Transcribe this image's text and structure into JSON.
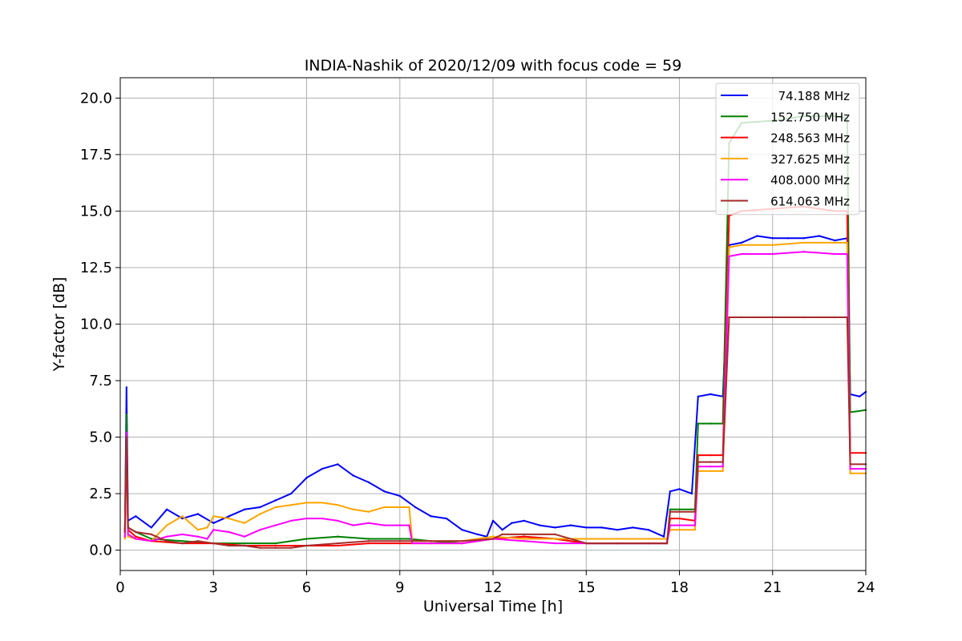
{
  "chart_data": {
    "type": "line",
    "title": "INDIA-Nashik of 2020/12/09 with focus code = 59",
    "xlabel": "Universal Time [h]",
    "ylabel": "Y-factor [dB]",
    "xlim": [
      0,
      24
    ],
    "ylim": [
      -0.9,
      20.9
    ],
    "xticks": [
      0,
      3,
      6,
      9,
      12,
      15,
      18,
      21,
      24
    ],
    "xtick_labels": [
      "0",
      "3",
      "6",
      "9",
      "12",
      "15",
      "18",
      "21",
      "24"
    ],
    "yticks": [
      0,
      2.5,
      5,
      7.5,
      10,
      12.5,
      15,
      17.5,
      20
    ],
    "ytick_labels": [
      "0.0",
      "2.5",
      "5.0",
      "7.5",
      "10.0",
      "12.5",
      "15.0",
      "17.5",
      "20.0"
    ],
    "grid": true,
    "legend_position": "top-right",
    "series": [
      {
        "name": "74.188 MHz",
        "color": "#0000ff",
        "x": [
          0.15,
          0.2,
          0.25,
          0.5,
          1.0,
          1.5,
          2.0,
          2.5,
          3.0,
          3.5,
          4.0,
          4.5,
          5.0,
          5.5,
          6.0,
          6.5,
          7.0,
          7.5,
          8.0,
          8.5,
          9.0,
          9.5,
          10.0,
          10.5,
          11.0,
          11.5,
          11.8,
          12.0,
          12.3,
          12.6,
          13.0,
          13.5,
          14.0,
          14.5,
          15.0,
          15.5,
          16.0,
          16.5,
          17.0,
          17.5,
          17.7,
          18.0,
          18.4,
          18.6,
          19.0,
          19.4,
          19.6,
          20.0,
          20.5,
          21.0,
          21.5,
          22.0,
          22.5,
          23.0,
          23.4,
          23.5,
          23.8,
          24.0
        ],
        "values": [
          0.8,
          7.2,
          1.3,
          1.5,
          1.0,
          1.8,
          1.4,
          1.6,
          1.2,
          1.5,
          1.8,
          1.9,
          2.2,
          2.5,
          3.2,
          3.6,
          3.8,
          3.3,
          3.0,
          2.6,
          2.4,
          1.9,
          1.5,
          1.4,
          0.9,
          0.7,
          0.6,
          1.3,
          0.9,
          1.2,
          1.3,
          1.1,
          1.0,
          1.1,
          1.0,
          1.0,
          0.9,
          1.0,
          0.9,
          0.6,
          2.6,
          2.7,
          2.5,
          6.8,
          6.9,
          6.8,
          13.5,
          13.6,
          13.9,
          13.8,
          13.8,
          13.8,
          13.9,
          13.7,
          13.8,
          6.9,
          6.8,
          7.0
        ]
      },
      {
        "name": "152.750 MHz",
        "color": "#008000",
        "x": [
          0.15,
          0.2,
          0.25,
          0.5,
          1.0,
          2.0,
          3.0,
          4.0,
          5.0,
          6.0,
          7.0,
          8.0,
          9.0,
          9.3,
          10.0,
          11.0,
          12.0,
          13.0,
          14.0,
          15.0,
          16.0,
          17.0,
          17.6,
          17.7,
          18.0,
          18.5,
          18.6,
          19.0,
          19.4,
          19.6,
          20.0,
          21.0,
          22.0,
          23.0,
          23.4,
          23.5,
          24.0
        ],
        "values": [
          0.9,
          6.0,
          1.0,
          0.8,
          0.5,
          0.4,
          0.3,
          0.3,
          0.3,
          0.5,
          0.6,
          0.5,
          0.5,
          0.5,
          0.4,
          0.3,
          0.5,
          0.6,
          0.5,
          0.3,
          0.3,
          0.3,
          0.3,
          1.8,
          1.8,
          1.8,
          5.6,
          5.6,
          5.6,
          18.0,
          18.9,
          19.0,
          19.2,
          19.2,
          19.1,
          6.1,
          6.2
        ]
      },
      {
        "name": "248.563 MHz",
        "color": "#ff0000",
        "x": [
          0.15,
          0.2,
          0.25,
          0.5,
          1.0,
          2.0,
          3.0,
          4.0,
          5.0,
          6.0,
          7.0,
          8.0,
          9.0,
          10.0,
          11.0,
          12.0,
          13.0,
          14.0,
          15.0,
          16.0,
          17.0,
          17.6,
          17.7,
          18.0,
          18.5,
          18.6,
          19.0,
          19.4,
          19.6,
          20.0,
          21.0,
          22.0,
          23.0,
          23.4,
          23.5,
          24.0
        ],
        "values": [
          0.8,
          5.0,
          0.9,
          0.6,
          0.4,
          0.3,
          0.3,
          0.2,
          0.2,
          0.2,
          0.2,
          0.3,
          0.3,
          0.3,
          0.3,
          0.5,
          0.6,
          0.5,
          0.3,
          0.3,
          0.3,
          0.3,
          1.4,
          1.4,
          1.3,
          4.2,
          4.2,
          4.2,
          14.8,
          15.0,
          15.1,
          15.2,
          15.0,
          15.0,
          4.3,
          4.3
        ]
      },
      {
        "name": "327.625 MHz",
        "color": "#ffa500",
        "x": [
          0.15,
          0.2,
          0.25,
          0.5,
          1.0,
          1.5,
          2.0,
          2.5,
          2.8,
          3.0,
          3.5,
          4.0,
          4.5,
          5.0,
          5.5,
          6.0,
          6.5,
          7.0,
          7.5,
          8.0,
          8.5,
          9.0,
          9.3,
          9.4,
          10.0,
          11.0,
          12.0,
          13.0,
          14.0,
          15.0,
          16.0,
          17.0,
          17.6,
          17.7,
          18.0,
          18.5,
          18.6,
          19.0,
          19.4,
          19.6,
          20.0,
          21.0,
          22.0,
          23.0,
          23.4,
          23.5,
          24.0
        ],
        "values": [
          0.5,
          4.5,
          0.6,
          0.5,
          0.4,
          1.1,
          1.5,
          0.9,
          1.0,
          1.5,
          1.4,
          1.2,
          1.6,
          1.9,
          2.0,
          2.1,
          2.1,
          2.0,
          1.8,
          1.7,
          1.9,
          1.9,
          1.9,
          0.4,
          0.4,
          0.4,
          0.6,
          0.5,
          0.5,
          0.5,
          0.5,
          0.5,
          0.5,
          0.9,
          0.9,
          0.9,
          3.5,
          3.5,
          3.5,
          13.4,
          13.5,
          13.5,
          13.6,
          13.6,
          13.6,
          3.4,
          3.4
        ]
      },
      {
        "name": "408.000 MHz",
        "color": "#ff00ff",
        "x": [
          0.15,
          0.2,
          0.25,
          0.5,
          1.0,
          1.5,
          2.0,
          2.5,
          2.8,
          3.0,
          3.5,
          4.0,
          4.5,
          5.0,
          5.5,
          6.0,
          6.5,
          7.0,
          7.5,
          8.0,
          8.5,
          9.0,
          9.3,
          9.4,
          10.0,
          11.0,
          12.0,
          13.0,
          14.0,
          15.0,
          16.0,
          17.0,
          17.6,
          17.7,
          18.0,
          18.5,
          18.6,
          19.0,
          19.4,
          19.6,
          20.0,
          21.0,
          22.0,
          23.0,
          23.4,
          23.5,
          24.0
        ],
        "values": [
          0.6,
          5.2,
          0.7,
          0.5,
          0.4,
          0.6,
          0.7,
          0.6,
          0.5,
          0.9,
          0.8,
          0.6,
          0.9,
          1.1,
          1.3,
          1.4,
          1.4,
          1.3,
          1.1,
          1.2,
          1.1,
          1.1,
          1.1,
          0.3,
          0.3,
          0.3,
          0.5,
          0.4,
          0.3,
          0.3,
          0.3,
          0.3,
          0.3,
          1.1,
          1.1,
          1.1,
          3.7,
          3.7,
          3.7,
          13.0,
          13.1,
          13.1,
          13.2,
          13.1,
          13.1,
          3.6,
          3.6
        ]
      },
      {
        "name": "614.063 MHz",
        "color": "#a52a2a",
        "x": [
          0.15,
          0.2,
          0.25,
          0.5,
          1.0,
          1.5,
          2.0,
          2.5,
          3.0,
          3.5,
          4.0,
          4.5,
          5.0,
          5.5,
          6.0,
          7.0,
          8.0,
          9.0,
          10.0,
          11.0,
          12.0,
          12.3,
          13.0,
          14.0,
          15.0,
          16.0,
          17.0,
          17.6,
          17.7,
          18.0,
          18.5,
          18.6,
          19.0,
          19.4,
          19.6,
          20.0,
          21.0,
          22.0,
          23.0,
          23.4,
          23.5,
          24.0
        ],
        "values": [
          0.8,
          5.0,
          1.0,
          0.8,
          0.7,
          0.4,
          0.3,
          0.4,
          0.3,
          0.2,
          0.2,
          0.1,
          0.1,
          0.1,
          0.2,
          0.3,
          0.4,
          0.4,
          0.4,
          0.4,
          0.5,
          0.7,
          0.7,
          0.7,
          0.3,
          0.3,
          0.3,
          0.3,
          1.7,
          1.7,
          1.7,
          3.9,
          3.9,
          3.9,
          10.3,
          10.3,
          10.3,
          10.3,
          10.3,
          10.3,
          3.8,
          3.8
        ]
      }
    ]
  }
}
